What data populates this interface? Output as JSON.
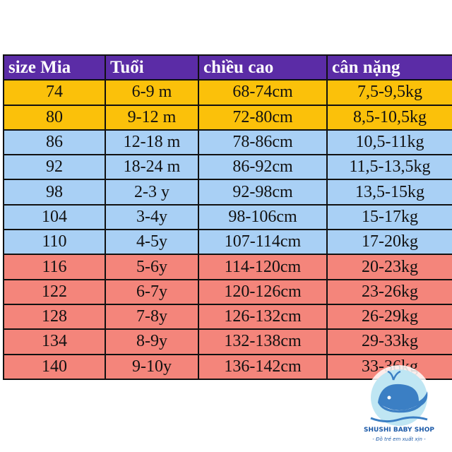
{
  "table": {
    "header": [
      "size Mia",
      "Tuổi",
      "chiều cao",
      "cân nặng"
    ],
    "rows": [
      [
        "74",
        "6-9 m",
        "68-74cm",
        "7,5-9,5kg"
      ],
      [
        "80",
        "9-12 m",
        "72-80cm",
        "8,5-10,5kg"
      ],
      [
        "86",
        "12-18 m",
        "78-86cm",
        "10,5-11kg"
      ],
      [
        "92",
        "18-24 m",
        "86-92cm",
        "11,5-13,5kg"
      ],
      [
        "98",
        "2-3 y",
        "92-98cm",
        "13,5-15kg"
      ],
      [
        "104",
        "3-4y",
        "98-106cm",
        "15-17kg"
      ],
      [
        "110",
        "4-5y",
        "107-114cm",
        "17-20kg"
      ],
      [
        "116",
        "5-6y",
        "114-120cm",
        "20-23kg"
      ],
      [
        "122",
        "6-7y",
        "120-126cm",
        "23-26kg"
      ],
      [
        "128",
        "7-8y",
        "126-132cm",
        "26-29kg"
      ],
      [
        "134",
        "8-9y",
        "132-138cm",
        "29-33kg"
      ],
      [
        "140",
        "9-10y",
        "136-142cm",
        "33-36kg"
      ]
    ]
  },
  "logo": {
    "name": "SHUSHI BABY SHOP",
    "tagline": "- Đồ trẻ em xuất xịn -"
  }
}
